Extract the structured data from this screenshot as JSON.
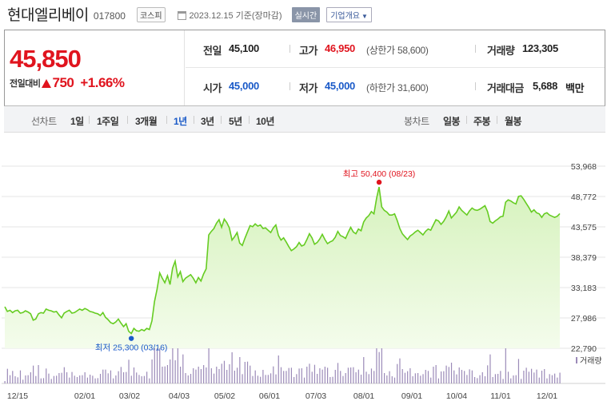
{
  "header": {
    "company_name": "현대엘리베이",
    "code": "017800",
    "market": "코스피",
    "date_text": "2023.12.15 기준(장마감)",
    "realtime_label": "실시간",
    "info_label": "기업개요"
  },
  "quote": {
    "price": "45,850",
    "change_label": "전일대비",
    "change_amount": "750",
    "change_percent": "+1.66%",
    "prev_close_label": "전일",
    "prev_close": "45,100",
    "open_label": "시가",
    "open": "45,000",
    "high_label": "고가",
    "high": "46,950",
    "upper_limit_text": "(상한가 58,600)",
    "low_label": "저가",
    "low": "45,000",
    "lower_limit_text": "(하한가 31,600)",
    "volume_label": "거래량",
    "volume": "123,305",
    "amount_label": "거래대금",
    "amount": "5,688",
    "amount_unit": "백만"
  },
  "period_bar": {
    "line_chart_label": "선차트",
    "line_periods": [
      "1일",
      "1주일",
      "3개월",
      "1년",
      "3년",
      "5년",
      "10년"
    ],
    "active_period": "1년",
    "candle_label": "봉차트",
    "candle_periods": [
      "일봉",
      "주봉",
      "월봉"
    ]
  },
  "colors": {
    "up": "#e0141e",
    "down": "#1a5ac8",
    "line": "#66cc22",
    "fill_top": "#d6f2bd",
    "fill_bottom": "#f4fcec",
    "volume": "#9b8ab8"
  },
  "chart_data": {
    "type": "area",
    "ylim": [
      22790,
      53968
    ],
    "y_ticks": [
      "53,968",
      "48,772",
      "43,575",
      "38,379",
      "33,183",
      "27,986",
      "22,790"
    ],
    "x_ticks": [
      "12/15",
      "02/01",
      "03/02",
      "04/03",
      "05/02",
      "06/01",
      "07/03",
      "08/01",
      "09/01",
      "10/04",
      "11/01",
      "12/01"
    ],
    "high_annotation": "최고 50,400 (08/23)",
    "low_annotation": "최저 25,300 (03/16)",
    "volume_legend": "거래량",
    "series": [
      {
        "values": [
          29900,
          29100,
          29300,
          28900,
          29200,
          29300,
          28800,
          28900,
          29200,
          29000,
          28700,
          27600,
          27800,
          28700,
          28900,
          28800,
          29500,
          29300,
          29200,
          29000,
          29100,
          28500,
          28000,
          28800,
          29100,
          29300,
          28800,
          28900,
          29200,
          29500,
          29300,
          29600,
          29400,
          29100,
          29000,
          28800,
          28700,
          28400,
          28900,
          28100,
          27700,
          27200,
          27000,
          27300,
          27800,
          27100,
          26500,
          27000,
          25700,
          25300,
          26200,
          25800,
          25700,
          26000,
          25800,
          26200,
          26000,
          27500,
          30800,
          32900,
          35700,
          34800,
          34000,
          35200,
          33700,
          36500,
          37700,
          35000,
          35900,
          34200,
          34800,
          35100,
          35400,
          34800,
          34000,
          34900,
          34300,
          35500,
          36400,
          42200,
          42800,
          43300,
          44200,
          44800,
          43500,
          44900,
          44300,
          43400,
          41300,
          41900,
          42600,
          40800,
          40400,
          41600,
          42700,
          43800,
          43600,
          44100,
          43700,
          43900,
          43300,
          43400,
          43000,
          42600,
          43400,
          43900,
          42100,
          41300,
          41700,
          41000,
          40200,
          39500,
          39800,
          40200,
          40900,
          40300,
          40500,
          41400,
          42400,
          41700,
          40600,
          40900,
          41500,
          42300,
          41400,
          40700,
          41000,
          41200,
          41800,
          42800,
          42100,
          41900,
          41600,
          42600,
          43500,
          42700,
          42400,
          43200,
          42900,
          44400,
          45100,
          45500,
          46200,
          45800,
          48400,
          50400,
          47000,
          46400,
          46100,
          45600,
          45600,
          45800,
          44700,
          43300,
          42400,
          41900,
          41400,
          42000,
          42300,
          42700,
          43000,
          42600,
          42200,
          42800,
          43200,
          43000,
          43900,
          44800,
          44600,
          44000,
          44500,
          45300,
          46300,
          45100,
          45600,
          46100,
          47000,
          46400,
          46000,
          45600,
          46300,
          46800,
          46500,
          46400,
          46600,
          46900,
          47200,
          46200,
          44500,
          44200,
          44600,
          44900,
          45300,
          45400,
          47800,
          48200,
          48000,
          47700,
          47500,
          48800,
          48900,
          48300,
          47600,
          46900,
          46100,
          46500,
          46000,
          45800,
          45200,
          45800,
          46000,
          45600,
          45400,
          45200,
          45400,
          45850
        ]
      }
    ]
  }
}
